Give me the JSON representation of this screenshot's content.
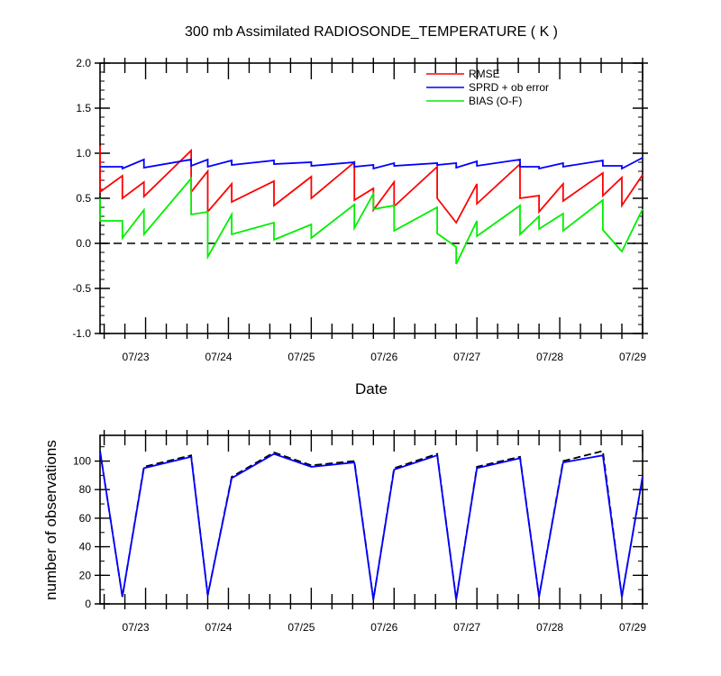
{
  "colors": {
    "rmse": "#ff0000",
    "sprd": "#0000ff",
    "bias": "#00ee00",
    "axis": "#000000"
  },
  "chart_data": [
    {
      "type": "line",
      "title": "300 mb Assimilated RADIOSONDE_TEMPERATURE ( K )",
      "xlabel": "Date",
      "ylabel": "",
      "xlim": [
        22.45,
        29.0
      ],
      "ylim": [
        -1.0,
        2.0
      ],
      "yticks": [
        -1.0,
        -0.5,
        0.0,
        0.5,
        1.0,
        1.5,
        2.0
      ],
      "ytick_labels": [
        "-1.0",
        "-0.5",
        "0.0",
        "0.5",
        "1.0",
        "1.5",
        "2.0"
      ],
      "xticks": [
        23,
        24,
        25,
        26,
        27,
        28,
        29
      ],
      "xtick_labels": [
        "07/23",
        "07/24",
        "07/25",
        "07/26",
        "07/27",
        "07/28",
        "07/29"
      ],
      "zero_line": "dashed",
      "legend_position": "top-right",
      "series": [
        {
          "name": "RMSE",
          "color": "#ff0000",
          "points": [
            [
              22.45,
              1.08
            ],
            [
              22.45,
              0.57
            ],
            [
              22.72,
              0.75
            ],
            [
              22.72,
              0.5
            ],
            [
              22.98,
              0.68
            ],
            [
              22.98,
              0.52
            ],
            [
              23.55,
              1.03
            ],
            [
              23.55,
              0.57
            ],
            [
              23.75,
              0.8
            ],
            [
              23.75,
              0.35
            ],
            [
              24.04,
              0.66
            ],
            [
              24.04,
              0.46
            ],
            [
              24.55,
              0.69
            ],
            [
              24.55,
              0.42
            ],
            [
              25.0,
              0.74
            ],
            [
              25.0,
              0.5
            ],
            [
              25.52,
              0.9
            ],
            [
              25.52,
              0.48
            ],
            [
              25.75,
              0.61
            ],
            [
              25.75,
              0.37
            ],
            [
              26.0,
              0.68
            ],
            [
              26.0,
              0.41
            ],
            [
              26.52,
              0.85
            ],
            [
              26.52,
              0.5
            ],
            [
              26.75,
              0.23
            ],
            [
              27.0,
              0.66
            ],
            [
              27.0,
              0.44
            ],
            [
              27.52,
              0.88
            ],
            [
              27.52,
              0.5
            ],
            [
              27.75,
              0.53
            ],
            [
              27.75,
              0.35
            ],
            [
              28.04,
              0.66
            ],
            [
              28.04,
              0.47
            ],
            [
              28.52,
              0.78
            ],
            [
              28.52,
              0.53
            ],
            [
              28.75,
              0.73
            ],
            [
              28.75,
              0.42
            ],
            [
              29.0,
              0.76
            ]
          ]
        },
        {
          "name": "SPRD + ob error",
          "color": "#0000ff",
          "points": [
            [
              22.45,
              0.85
            ],
            [
              22.72,
              0.85
            ],
            [
              22.72,
              0.83
            ],
            [
              22.98,
              0.93
            ],
            [
              22.98,
              0.84
            ],
            [
              23.55,
              0.93
            ],
            [
              23.55,
              0.86
            ],
            [
              23.75,
              0.93
            ],
            [
              23.75,
              0.85
            ],
            [
              24.04,
              0.92
            ],
            [
              24.04,
              0.87
            ],
            [
              24.55,
              0.92
            ],
            [
              24.55,
              0.88
            ],
            [
              25.0,
              0.9
            ],
            [
              25.0,
              0.86
            ],
            [
              25.52,
              0.9
            ],
            [
              25.52,
              0.85
            ],
            [
              25.75,
              0.87
            ],
            [
              25.75,
              0.83
            ],
            [
              26.0,
              0.89
            ],
            [
              26.0,
              0.86
            ],
            [
              26.52,
              0.89
            ],
            [
              26.52,
              0.87
            ],
            [
              26.75,
              0.89
            ],
            [
              26.75,
              0.84
            ],
            [
              27.0,
              0.91
            ],
            [
              27.0,
              0.86
            ],
            [
              27.52,
              0.93
            ],
            [
              27.52,
              0.85
            ],
            [
              27.75,
              0.85
            ],
            [
              27.75,
              0.83
            ],
            [
              28.04,
              0.89
            ],
            [
              28.04,
              0.85
            ],
            [
              28.52,
              0.92
            ],
            [
              28.52,
              0.86
            ],
            [
              28.75,
              0.86
            ],
            [
              28.75,
              0.83
            ],
            [
              29.0,
              0.95
            ]
          ]
        },
        {
          "name": "BIAS (O-F)",
          "color": "#00ee00",
          "points": [
            [
              22.45,
              0.5
            ],
            [
              22.45,
              0.25
            ],
            [
              22.72,
              0.25
            ],
            [
              22.72,
              0.06
            ],
            [
              22.98,
              0.37
            ],
            [
              22.98,
              0.1
            ],
            [
              23.55,
              0.72
            ],
            [
              23.55,
              0.32
            ],
            [
              23.75,
              0.35
            ],
            [
              23.75,
              -0.15
            ],
            [
              24.04,
              0.32
            ],
            [
              24.04,
              0.1
            ],
            [
              24.55,
              0.23
            ],
            [
              24.55,
              0.04
            ],
            [
              25.0,
              0.21
            ],
            [
              25.0,
              0.06
            ],
            [
              25.52,
              0.43
            ],
            [
              25.52,
              0.17
            ],
            [
              25.75,
              0.55
            ],
            [
              25.75,
              0.38
            ],
            [
              26.0,
              0.42
            ],
            [
              26.0,
              0.14
            ],
            [
              26.52,
              0.4
            ],
            [
              26.52,
              0.11
            ],
            [
              26.75,
              -0.04
            ],
            [
              26.75,
              -0.23
            ],
            [
              27.0,
              0.25
            ],
            [
              27.0,
              0.08
            ],
            [
              27.52,
              0.42
            ],
            [
              27.52,
              0.1
            ],
            [
              27.75,
              0.3
            ],
            [
              27.75,
              0.16
            ],
            [
              28.04,
              0.33
            ],
            [
              28.04,
              0.14
            ],
            [
              28.52,
              0.48
            ],
            [
              28.52,
              0.15
            ],
            [
              28.75,
              -0.09
            ],
            [
              29.0,
              0.38
            ]
          ]
        }
      ]
    },
    {
      "type": "line",
      "title": "",
      "xlabel": "",
      "ylabel": "number of observations",
      "xlim": [
        22.45,
        29.0
      ],
      "ylim": [
        0,
        118
      ],
      "yticks": [
        0,
        20,
        40,
        60,
        80,
        100
      ],
      "ytick_labels": [
        "0",
        "20",
        "40",
        "60",
        "80",
        "100"
      ],
      "xticks": [
        23,
        24,
        25,
        26,
        27,
        28,
        29
      ],
      "xtick_labels": [
        "07/23",
        "07/24",
        "07/25",
        "07/26",
        "07/27",
        "07/28",
        "07/29"
      ],
      "series": [
        {
          "color": "#000000",
          "style": "dashed",
          "points": [
            [
              22.45,
              107
            ],
            [
              22.72,
              5
            ],
            [
              22.98,
              96
            ],
            [
              23.55,
              104
            ],
            [
              23.75,
              6
            ],
            [
              24.04,
              89
            ],
            [
              24.55,
              106
            ],
            [
              25.0,
              97
            ],
            [
              25.52,
              100
            ],
            [
              25.75,
              3
            ],
            [
              26.0,
              95
            ],
            [
              26.52,
              105
            ],
            [
              26.75,
              3
            ],
            [
              27.0,
              96
            ],
            [
              27.52,
              103
            ],
            [
              27.75,
              5
            ],
            [
              28.04,
              100
            ],
            [
              28.52,
              107
            ],
            [
              28.75,
              5
            ],
            [
              29.0,
              89
            ]
          ]
        },
        {
          "color": "#0000ff",
          "style": "solid",
          "points": [
            [
              22.45,
              107
            ],
            [
              22.72,
              5
            ],
            [
              22.98,
              95
            ],
            [
              23.55,
              103
            ],
            [
              23.75,
              6
            ],
            [
              24.04,
              88
            ],
            [
              24.55,
              105
            ],
            [
              25.0,
              96
            ],
            [
              25.52,
              99
            ],
            [
              25.75,
              3
            ],
            [
              26.0,
              94
            ],
            [
              26.52,
              104
            ],
            [
              26.75,
              3
            ],
            [
              27.0,
              95
            ],
            [
              27.52,
              102
            ],
            [
              27.75,
              5
            ],
            [
              28.04,
              99
            ],
            [
              28.52,
              104
            ],
            [
              28.75,
              5
            ],
            [
              29.0,
              89
            ]
          ]
        }
      ]
    }
  ]
}
